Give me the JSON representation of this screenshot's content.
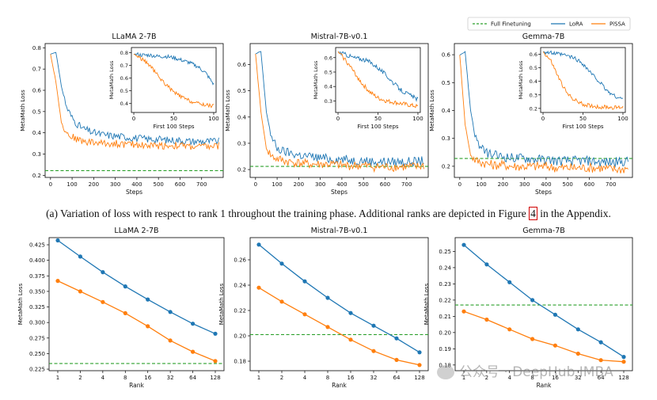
{
  "caption": {
    "before": "(a) Variation of loss with respect to rank 1 throughout the training phase. Additional ranks are depicted in Figure ",
    "ref": "4",
    "after": " in the Appendix."
  },
  "legend": {
    "entries": [
      {
        "label": "Full Finetuning",
        "color": "#2ca02c",
        "style": "dashed"
      },
      {
        "label": "LoRA",
        "color": "#1f77b4",
        "style": "solid"
      },
      {
        "label": "PiSSA",
        "color": "#ff7f0e",
        "style": "solid"
      }
    ]
  },
  "watermark": "公众号 · DeepHub IMBA",
  "chart_data": [
    {
      "type": "line",
      "title": "LLaMA 2-7B",
      "xlabel": "Steps",
      "ylabel": "MetaMath Loss",
      "xlim": [
        -25,
        800
      ],
      "ylim": [
        0.19,
        0.82
      ],
      "xticks": [
        0,
        100,
        200,
        300,
        400,
        500,
        600,
        700
      ],
      "yticks": [
        0.2,
        0.3,
        0.4,
        0.5,
        0.6,
        0.7,
        0.8
      ],
      "ytick_labels": [
        "0.2",
        "0.3",
        "0.4",
        "0.5",
        "0.6",
        "0.7",
        "0.8"
      ],
      "full_finetuning": 0.222,
      "series": [
        {
          "name": "LoRA",
          "key": "L",
          "x": [
            0,
            25,
            50,
            75,
            100,
            125,
            150,
            200,
            250,
            300,
            350,
            400,
            450,
            500,
            550,
            600,
            650,
            700,
            750,
            780
          ],
          "values": [
            0.77,
            0.78,
            0.62,
            0.52,
            0.47,
            0.44,
            0.42,
            0.4,
            0.39,
            0.385,
            0.38,
            0.375,
            0.37,
            0.37,
            0.365,
            0.365,
            0.36,
            0.36,
            0.36,
            0.36
          ]
        },
        {
          "name": "PiSSA",
          "key": "P",
          "x": [
            0,
            25,
            50,
            75,
            100,
            125,
            150,
            200,
            250,
            300,
            350,
            400,
            450,
            500,
            550,
            600,
            650,
            700,
            750,
            780
          ],
          "values": [
            0.77,
            0.64,
            0.45,
            0.4,
            0.38,
            0.37,
            0.36,
            0.355,
            0.35,
            0.35,
            0.345,
            0.345,
            0.34,
            0.34,
            0.34,
            0.34,
            0.335,
            0.335,
            0.335,
            0.34
          ]
        }
      ],
      "inset": {
        "xlabel": "First 100 Steps",
        "ylabel": "MetaMath Loss",
        "xlim": [
          -3,
          103
        ],
        "ylim": [
          0.33,
          0.84
        ],
        "xticks": [
          0,
          50,
          100
        ],
        "yticks": [
          0.4,
          0.5,
          0.6,
          0.7,
          0.8
        ],
        "ytick_labels": [
          "0.4",
          "0.5",
          "0.6",
          "0.7",
          "0.8"
        ],
        "series": [
          {
            "name": "LoRA",
            "key": "L",
            "x": [
              0,
              10,
              20,
              30,
              40,
              50,
              60,
              70,
              80,
              90,
              100
            ],
            "values": [
              0.79,
              0.78,
              0.78,
              0.77,
              0.77,
              0.76,
              0.74,
              0.72,
              0.69,
              0.64,
              0.55
            ]
          },
          {
            "name": "PiSSA",
            "key": "P",
            "x": [
              0,
              10,
              20,
              30,
              40,
              50,
              60,
              70,
              80,
              90,
              100
            ],
            "values": [
              0.79,
              0.75,
              0.7,
              0.62,
              0.55,
              0.49,
              0.45,
              0.42,
              0.4,
              0.39,
              0.38
            ]
          }
        ]
      }
    },
    {
      "type": "line",
      "title": "Mistral-7B-v0.1",
      "xlabel": "Steps",
      "ylabel": "MetaMath Loss",
      "xlim": [
        -25,
        800
      ],
      "ylim": [
        0.17,
        0.68
      ],
      "xticks": [
        0,
        100,
        200,
        300,
        400,
        500,
        600,
        700
      ],
      "yticks": [
        0.2,
        0.3,
        0.4,
        0.5,
        0.6
      ],
      "ytick_labels": [
        "0.2",
        "0.3",
        "0.4",
        "0.5",
        "0.6"
      ],
      "full_finetuning": 0.212,
      "series": [
        {
          "name": "LoRA",
          "key": "L",
          "x": [
            0,
            25,
            50,
            75,
            100,
            125,
            150,
            200,
            250,
            300,
            350,
            400,
            450,
            500,
            550,
            600,
            650,
            700,
            750,
            780
          ],
          "values": [
            0.64,
            0.65,
            0.42,
            0.32,
            0.28,
            0.27,
            0.265,
            0.255,
            0.25,
            0.245,
            0.24,
            0.24,
            0.235,
            0.235,
            0.23,
            0.23,
            0.23,
            0.23,
            0.23,
            0.235
          ]
        },
        {
          "name": "PiSSA",
          "key": "P",
          "x": [
            0,
            25,
            50,
            75,
            100,
            125,
            150,
            200,
            250,
            300,
            350,
            400,
            450,
            500,
            550,
            600,
            650,
            700,
            750,
            780
          ],
          "values": [
            0.64,
            0.42,
            0.28,
            0.25,
            0.24,
            0.235,
            0.23,
            0.225,
            0.22,
            0.22,
            0.22,
            0.215,
            0.215,
            0.215,
            0.21,
            0.21,
            0.21,
            0.21,
            0.21,
            0.215
          ]
        }
      ],
      "inset": {
        "xlabel": "First 100 Steps",
        "ylabel": "MetaMath Loss",
        "xlim": [
          -3,
          103
        ],
        "ylim": [
          0.22,
          0.67
        ],
        "xticks": [
          0,
          50,
          100
        ],
        "yticks": [
          0.3,
          0.4,
          0.5,
          0.6
        ],
        "ytick_labels": [
          "0.3",
          "0.4",
          "0.5",
          "0.6"
        ],
        "series": [
          {
            "name": "LoRA",
            "key": "L",
            "x": [
              0,
              10,
              20,
              30,
              40,
              50,
              60,
              70,
              80,
              90,
              100
            ],
            "values": [
              0.64,
              0.62,
              0.6,
              0.59,
              0.57,
              0.53,
              0.48,
              0.42,
              0.37,
              0.34,
              0.31
            ]
          },
          {
            "name": "PiSSA",
            "key": "P",
            "x": [
              0,
              10,
              20,
              30,
              40,
              50,
              60,
              70,
              80,
              90,
              100
            ],
            "values": [
              0.64,
              0.58,
              0.5,
              0.42,
              0.36,
              0.32,
              0.3,
              0.29,
              0.28,
              0.27,
              0.26
            ]
          }
        ]
      }
    },
    {
      "type": "line",
      "title": "Gemma-7B",
      "xlabel": "Steps",
      "ylabel": "MetaMath Loss",
      "xlim": [
        -25,
        800
      ],
      "ylim": [
        0.16,
        0.64
      ],
      "xticks": [
        0,
        100,
        200,
        300,
        400,
        500,
        600,
        700
      ],
      "yticks": [
        0.2,
        0.3,
        0.4,
        0.5,
        0.6
      ],
      "ytick_labels": [
        "0.2",
        "0.3",
        "0.4",
        "0.5",
        "0.6"
      ],
      "full_finetuning": 0.228,
      "series": [
        {
          "name": "LoRA",
          "key": "L",
          "x": [
            0,
            25,
            50,
            75,
            100,
            125,
            150,
            200,
            250,
            300,
            350,
            400,
            450,
            500,
            550,
            600,
            650,
            700,
            750,
            780
          ],
          "values": [
            0.6,
            0.61,
            0.4,
            0.3,
            0.26,
            0.25,
            0.24,
            0.235,
            0.23,
            0.23,
            0.225,
            0.225,
            0.22,
            0.22,
            0.22,
            0.22,
            0.215,
            0.215,
            0.215,
            0.22
          ]
        },
        {
          "name": "PiSSA",
          "key": "P",
          "x": [
            0,
            25,
            50,
            75,
            100,
            125,
            150,
            200,
            250,
            300,
            350,
            400,
            450,
            500,
            550,
            600,
            650,
            700,
            750,
            780
          ],
          "values": [
            0.6,
            0.35,
            0.24,
            0.22,
            0.215,
            0.21,
            0.205,
            0.205,
            0.2,
            0.2,
            0.2,
            0.2,
            0.195,
            0.195,
            0.195,
            0.195,
            0.195,
            0.19,
            0.19,
            0.195
          ]
        }
      ],
      "inset": {
        "xlabel": "First 100 Steps",
        "ylabel": "MetaMath Loss",
        "xlim": [
          -3,
          103
        ],
        "ylim": [
          0.17,
          0.65
        ],
        "xticks": [
          0,
          50,
          100
        ],
        "yticks": [
          0.2,
          0.3,
          0.4,
          0.5,
          0.6
        ],
        "ytick_labels": [
          "0.2",
          "0.3",
          "0.4",
          "0.5",
          "0.6"
        ],
        "series": [
          {
            "name": "LoRA",
            "key": "L",
            "x": [
              0,
              10,
              20,
              30,
              40,
              50,
              60,
              70,
              80,
              90,
              100
            ],
            "values": [
              0.62,
              0.61,
              0.6,
              0.59,
              0.57,
              0.53,
              0.46,
              0.4,
              0.33,
              0.29,
              0.27
            ]
          },
          {
            "name": "PiSSA",
            "key": "P",
            "x": [
              0,
              10,
              20,
              30,
              40,
              50,
              60,
              70,
              80,
              90,
              100
            ],
            "values": [
              0.62,
              0.55,
              0.42,
              0.31,
              0.26,
              0.23,
              0.22,
              0.21,
              0.21,
              0.205,
              0.21
            ]
          }
        ]
      }
    },
    {
      "type": "line",
      "title": "LLaMA 2-7B",
      "xlabel": "Rank",
      "ylabel": "MetaMath Loss",
      "categories": [
        "1",
        "2",
        "4",
        "8",
        "16",
        "32",
        "64",
        "128"
      ],
      "ylim": [
        0.2225,
        0.4365
      ],
      "yticks": [
        0.225,
        0.25,
        0.275,
        0.3,
        0.325,
        0.35,
        0.375,
        0.4,
        0.425
      ],
      "ytick_labels": [
        "0.225",
        "0.250",
        "0.275",
        "0.300",
        "0.325",
        "0.350",
        "0.375",
        "0.400",
        "0.425"
      ],
      "full_finetuning": 0.234,
      "series": [
        {
          "name": "LoRA",
          "key": "L",
          "values": [
            0.432,
            0.406,
            0.381,
            0.358,
            0.337,
            0.317,
            0.298,
            0.282
          ]
        },
        {
          "name": "PiSSA",
          "key": "P",
          "values": [
            0.367,
            0.35,
            0.333,
            0.315,
            0.294,
            0.271,
            0.253,
            0.238
          ]
        }
      ]
    },
    {
      "type": "line",
      "title": "Mistral-7B-v0.1",
      "xlabel": "Rank",
      "ylabel": "MetaMath Loss",
      "categories": [
        "1",
        "2",
        "4",
        "8",
        "16",
        "32",
        "64",
        "128"
      ],
      "ylim": [
        0.1725,
        0.2775
      ],
      "yticks": [
        0.18,
        0.2,
        0.22,
        0.24,
        0.26
      ],
      "ytick_labels": [
        "0.18",
        "0.20",
        "0.22",
        "0.24",
        "0.26"
      ],
      "full_finetuning": 0.201,
      "series": [
        {
          "name": "LoRA",
          "key": "L",
          "values": [
            0.272,
            0.257,
            0.243,
            0.23,
            0.218,
            0.208,
            0.198,
            0.187
          ]
        },
        {
          "name": "PiSSA",
          "key": "P",
          "values": [
            0.238,
            0.227,
            0.217,
            0.207,
            0.197,
            0.188,
            0.181,
            0.177
          ]
        }
      ]
    },
    {
      "type": "line",
      "title": "Gemma-7B",
      "xlabel": "Rank",
      "ylabel": "MetaMath Loss",
      "categories": [
        "1",
        "2",
        "4",
        "8",
        "16",
        "32",
        "64",
        "128"
      ],
      "ylim": [
        0.1765,
        0.2585
      ],
      "yticks": [
        0.18,
        0.19,
        0.2,
        0.21,
        0.22,
        0.23,
        0.24,
        0.25
      ],
      "ytick_labels": [
        "0.18",
        "0.19",
        "0.20",
        "0.21",
        "0.22",
        "0.23",
        "0.24",
        "0.25"
      ],
      "full_finetuning": 0.217,
      "series": [
        {
          "name": "LoRA",
          "key": "L",
          "values": [
            0.254,
            0.242,
            0.231,
            0.22,
            0.211,
            0.202,
            0.194,
            0.185
          ]
        },
        {
          "name": "PiSSA",
          "key": "P",
          "values": [
            0.213,
            0.208,
            0.202,
            0.196,
            0.192,
            0.187,
            0.183,
            0.182
          ]
        }
      ]
    }
  ]
}
